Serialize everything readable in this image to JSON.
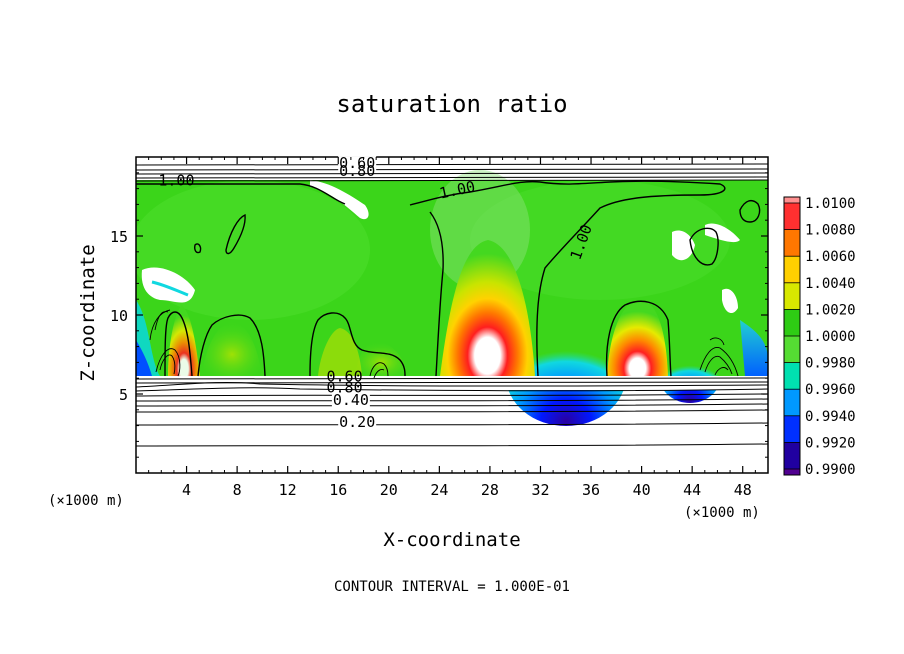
{
  "chart_data": {
    "type": "heatmap",
    "title": "saturation ratio",
    "xlabel": "X-coordinate",
    "ylabel": "Z-coordinate",
    "x_unit_label": "(×1000 m)",
    "z_unit_label": "(×1000 m)",
    "xlim": [
      0,
      50
    ],
    "ylim": [
      0,
      20
    ],
    "x_ticks": [
      4,
      8,
      12,
      16,
      20,
      24,
      28,
      32,
      36,
      40,
      44,
      48
    ],
    "y_ticks": [
      5,
      10,
      15
    ],
    "colorbar": {
      "levels": [
        "1.0100",
        "1.0080",
        "1.0060",
        "1.0040",
        "1.0020",
        "1.0000",
        "0.9980",
        "0.9960",
        "0.9940",
        "0.9920",
        "0.9900"
      ],
      "colors": [
        "#ff3030",
        "#ff7700",
        "#ffd000",
        "#d8e800",
        "#2ecc14",
        "#55dd33",
        "#00e0b0",
        "#0099ff",
        "#0030ff",
        "#2000a0"
      ],
      "top_color": "#ff9090",
      "bottom_color": "#500090"
    },
    "contour_labels": [
      {
        "text": "0.60",
        "x": 17.5,
        "z": 19.3
      },
      {
        "text": "0.80",
        "x": 17.5,
        "z": 18.8
      },
      {
        "text": "1.00",
        "x": 3.2,
        "z": 18.2
      },
      {
        "text": "1.00",
        "x": 25.5,
        "z": 17.6
      },
      {
        "text": "1.00",
        "x": 35.6,
        "z": 14.5
      },
      {
        "text": "0.60",
        "x": 16.5,
        "z": 5.8
      },
      {
        "text": "0.80",
        "x": 16.5,
        "z": 5.1
      },
      {
        "text": "0.40",
        "x": 17.0,
        "z": 4.3
      },
      {
        "text": "0.20",
        "x": 17.5,
        "z": 2.9
      }
    ],
    "contour_interval_text": "CONTOUR INTERVAL = 1.000E-01"
  }
}
